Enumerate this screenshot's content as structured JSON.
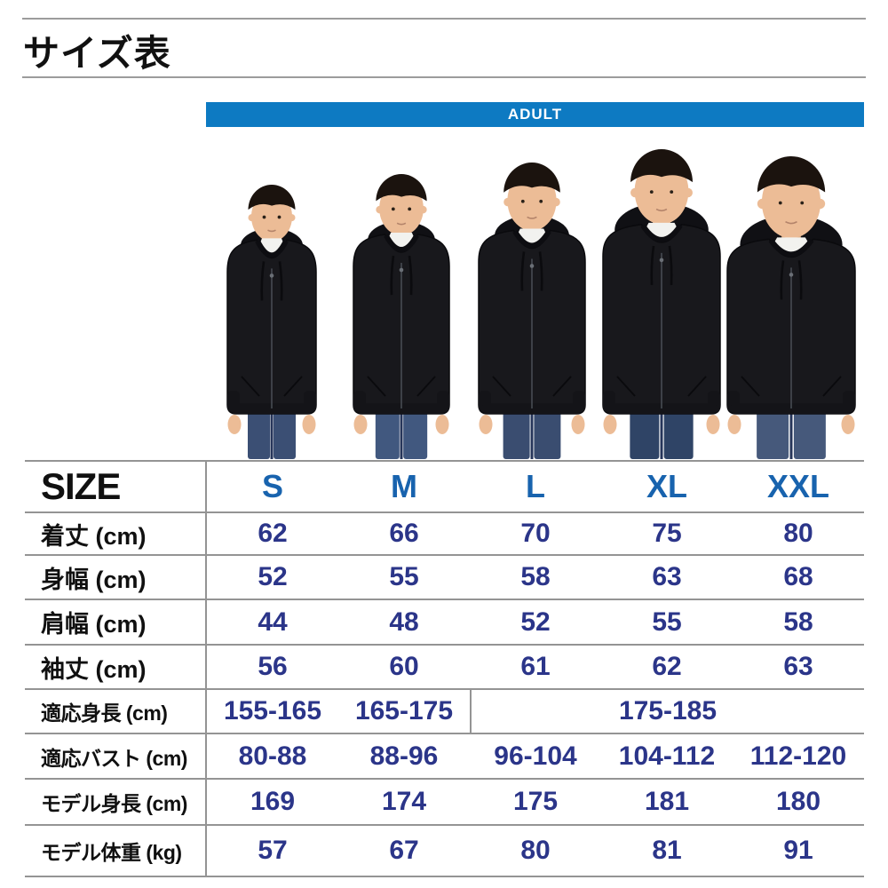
{
  "title": "サイズ表",
  "banner": {
    "label": "ADULT"
  },
  "photo": {
    "model_sizes": [
      "S",
      "M",
      "L",
      "XL",
      "XXL"
    ]
  },
  "table": {
    "size_header": "SIZE",
    "columns": [
      "S",
      "M",
      "L",
      "XL",
      "XXL"
    ],
    "rows": [
      {
        "label": "着丈 (cm)",
        "values": [
          "62",
          "66",
          "70",
          "75",
          "80"
        ]
      },
      {
        "label": "身幅 (cm)",
        "values": [
          "52",
          "55",
          "58",
          "63",
          "68"
        ]
      },
      {
        "label": "肩幅 (cm)",
        "values": [
          "44",
          "48",
          "52",
          "55",
          "58"
        ]
      },
      {
        "label": "袖丈 (cm)",
        "values": [
          "56",
          "60",
          "61",
          "62",
          "63"
        ]
      },
      {
        "label": "適応身長 (cm)",
        "values": [
          "155-165",
          "165-175",
          {
            "text": "175-185",
            "span": 3
          }
        ]
      },
      {
        "label": "適応バスト (cm)",
        "values": [
          "80-88",
          "88-96",
          "96-104",
          "104-112",
          "112-120"
        ]
      },
      {
        "label": "モデル身長 (cm)",
        "values": [
          "169",
          "174",
          "175",
          "181",
          "180"
        ]
      },
      {
        "label": "モデル体重 (kg)",
        "values": [
          "57",
          "67",
          "80",
          "81",
          "91"
        ]
      }
    ]
  },
  "colors": {
    "banner_blue": "#0d7ac2",
    "size_header_blue": "#1863ae",
    "value_navy": "#2b3589",
    "grid_gray": "#949494"
  }
}
